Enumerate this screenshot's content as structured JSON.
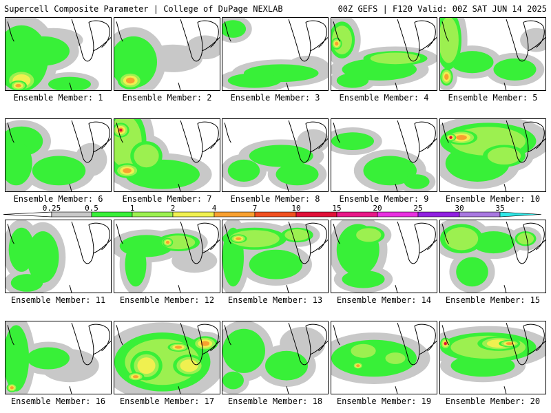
{
  "header": {
    "title": "Supercell Composite Parameter | College of DuPage NEXLAB",
    "run_info": "00Z GEFS | F120 Valid: 00Z SAT JUN 14 2025"
  },
  "colorbar": {
    "ticks": [
      "0.25",
      "0.5",
      "1",
      "2",
      "4",
      "7",
      "10",
      "15",
      "20",
      "25",
      "30",
      "35"
    ],
    "colors": [
      "#c8c8c8",
      "#38f038",
      "#9cf050",
      "#f0f050",
      "#f8a030",
      "#f05020",
      "#e01038",
      "#e81888",
      "#e830e0",
      "#9020e0",
      "#a878e0",
      "#30e8e8"
    ]
  },
  "members": [
    {
      "label": "Ensemble Member: 1"
    },
    {
      "label": "Ensemble Member: 2"
    },
    {
      "label": "Ensemble Member: 3"
    },
    {
      "label": "Ensemble Member: 4"
    },
    {
      "label": "Ensemble Member: 5"
    },
    {
      "label": "Ensemble Member: 6"
    },
    {
      "label": "Ensemble Member: 7"
    },
    {
      "label": "Ensemble Member: 8"
    },
    {
      "label": "Ensemble Member: 9"
    },
    {
      "label": "Ensemble Member: 10"
    },
    {
      "label": "Ensemble Member: 11"
    },
    {
      "label": "Ensemble Member: 12"
    },
    {
      "label": "Ensemble Member: 13"
    },
    {
      "label": "Ensemble Member: 14"
    },
    {
      "label": "Ensemble Member: 15"
    },
    {
      "label": "Ensemble Member: 16"
    },
    {
      "label": "Ensemble Member: 17"
    },
    {
      "label": "Ensemble Member: 18"
    },
    {
      "label": "Ensemble Member: 19"
    },
    {
      "label": "Ensemble Member: 20"
    }
  ]
}
